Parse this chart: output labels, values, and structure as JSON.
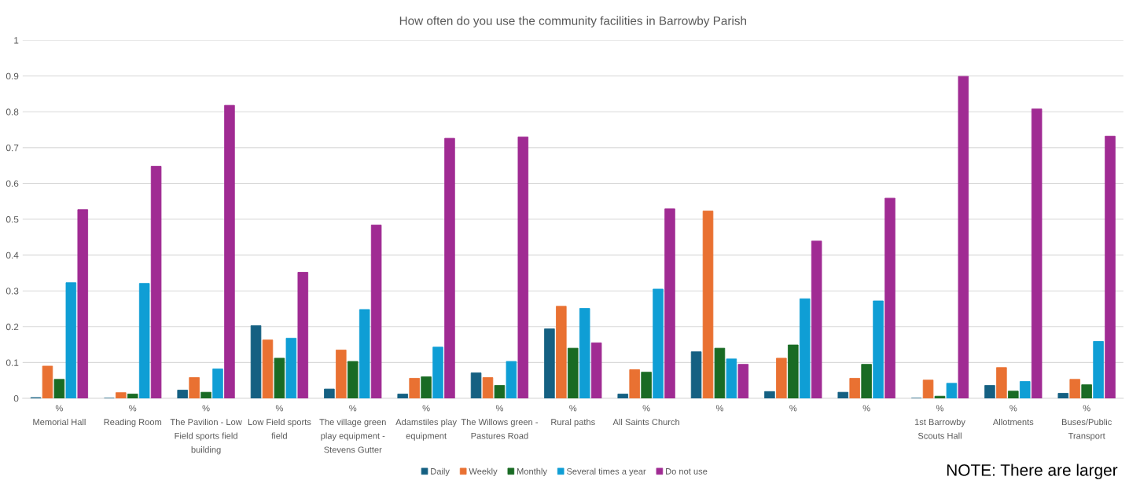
{
  "chart_data": {
    "type": "bar",
    "title": "How often do you use the community facilities in Barrowby Parish",
    "categories": [
      "%\nMemorial Hall",
      "%\nReading Room",
      "%\nThe Pavilion - Low\nField sports field\nbuilding",
      "%\nLow Field sports\nfield",
      "%\nThe village green\nplay equipment -\nStevens Gutter",
      "%\nAdamstiles play\nequipment",
      "%\nThe Willows green -\nPastures Road",
      "%\nRural paths",
      "%\nAll Saints Church",
      "%",
      "%",
      "%",
      "%\n1st Barrowby\nScouts Hall",
      "%\nAllotments",
      "%\nBuses/Public\nTransport"
    ],
    "series": [
      {
        "name": "Daily",
        "color": "#156082",
        "values": [
          0.002,
          0,
          0.023,
          0.203,
          0.026,
          0.012,
          0.071,
          0.194,
          0.012,
          0.13,
          0.019,
          0.017,
          0,
          0.036,
          0.014
        ]
      },
      {
        "name": "Weekly",
        "color": "#e97132",
        "values": [
          0.09,
          0.016,
          0.058,
          0.163,
          0.135,
          0.056,
          0.058,
          0.257,
          0.08,
          0.523,
          0.112,
          0.056,
          0.051,
          0.086,
          0.053
        ]
      },
      {
        "name": "Monthly",
        "color": "#196b24",
        "values": [
          0.053,
          0.012,
          0.017,
          0.112,
          0.103,
          0.06,
          0.036,
          0.14,
          0.073,
          0.14,
          0.149,
          0.095,
          0.006,
          0.02,
          0.038
        ]
      },
      {
        "name": "Several times a year",
        "color": "#0f9ed5",
        "values": [
          0.323,
          0.321,
          0.082,
          0.168,
          0.248,
          0.143,
          0.103,
          0.251,
          0.305,
          0.11,
          0.278,
          0.272,
          0.042,
          0.047,
          0.159
        ]
      },
      {
        "name": "Do not use",
        "color": "#a02b93",
        "values": [
          0.527,
          0.648,
          0.818,
          0.352,
          0.484,
          0.726,
          0.73,
          0.155,
          0.529,
          0.095,
          0.439,
          0.559,
          0.899,
          0.808,
          0.732
        ]
      }
    ],
    "ylim": [
      0,
      1
    ],
    "yticks": [
      0,
      0.1,
      0.2,
      0.3,
      0.4,
      0.5,
      0.6,
      0.7,
      0.8,
      0.9,
      1
    ],
    "grid": "y",
    "legend": "bottom",
    "annotations": [
      "NOTE: There are larger"
    ]
  }
}
